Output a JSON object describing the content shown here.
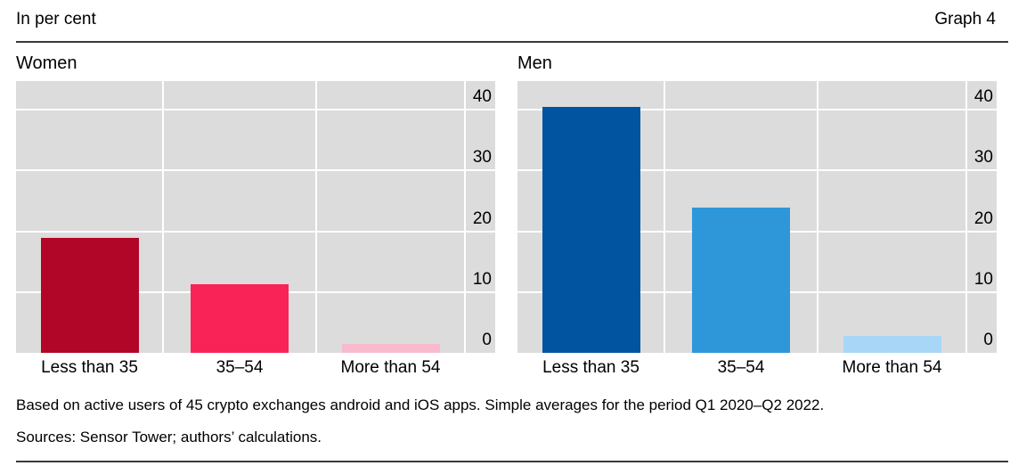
{
  "header": {
    "left": "In per cent",
    "right": "Graph 4"
  },
  "chart_data": [
    {
      "type": "bar",
      "title": "Women",
      "categories": [
        "Less than 35",
        "35–54",
        "More than 54"
      ],
      "values": [
        18.9,
        11.3,
        1.4
      ],
      "bar_colors": [
        "#B10627",
        "#FA2358",
        "#F8BACC"
      ],
      "yticks": [
        0,
        10,
        20,
        30,
        40
      ],
      "ylim": [
        0,
        44.7
      ],
      "ylabel": "",
      "xlabel": "",
      "grid": true,
      "tick_side": "right",
      "plot_background": "#DCDCDC",
      "gridline_color": "#FFFFFF",
      "legend": "none"
    },
    {
      "type": "bar",
      "title": "Men",
      "categories": [
        "Less than 35",
        "35–54",
        "More than 54"
      ],
      "values": [
        40.4,
        23.9,
        2.8
      ],
      "bar_colors": [
        "#0054A0",
        "#2E97D9",
        "#A7D6F6"
      ],
      "yticks": [
        0,
        10,
        20,
        30,
        40
      ],
      "ylim": [
        0,
        44.7
      ],
      "ylabel": "",
      "xlabel": "",
      "grid": true,
      "tick_side": "right",
      "plot_background": "#DCDCDC",
      "gridline_color": "#FFFFFF",
      "legend": "none"
    }
  ],
  "footnotes": {
    "note": "Based on active users of 45 crypto exchanges android and iOS apps. Simple averages for the period Q1 2020–Q2 2022.",
    "sources": "Sources: Sensor Tower; authors’ calculations."
  },
  "colors": {
    "rule": "#3a3a3a",
    "text": "#000000",
    "page_background": "#FFFFFF"
  }
}
